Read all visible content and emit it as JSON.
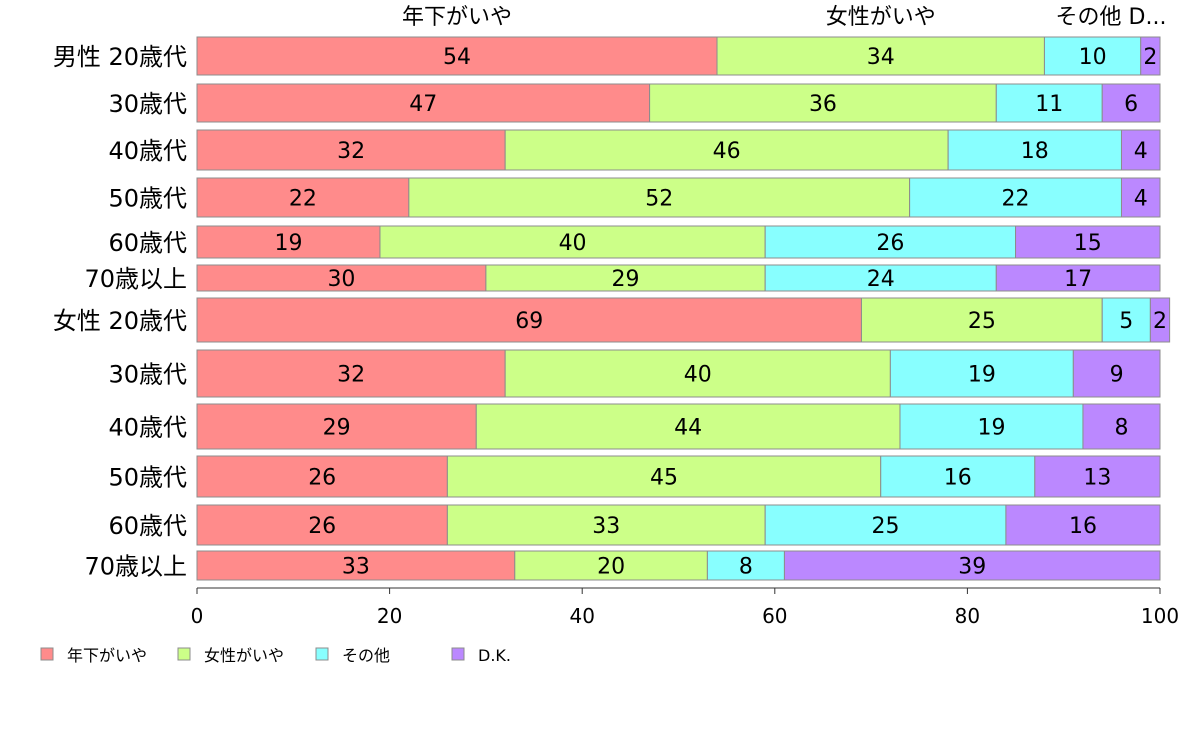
{
  "colors": {
    "年下がいや": "#FF8B8B",
    "女性がいや": "#CCFF88",
    "その他": "#88FFFF",
    "D.K.": "#BB88FF"
  },
  "chart_data": {
    "type": "bar",
    "orientation": "horizontal",
    "stacked": true,
    "xlim": [
      0,
      100
    ],
    "x_ticks": [
      "0",
      "20",
      "40",
      "60",
      "80",
      "100"
    ],
    "grid": false,
    "legend_position": "bottom-left",
    "legend": [
      "年下がいや",
      "女性がいや",
      "その他",
      "D.K."
    ],
    "top_labels": [
      "年下がいや",
      "女性がいや",
      "その他 D..."
    ],
    "categories": [
      "男性 20歳代",
      "30歳代",
      "40歳代",
      "50歳代",
      "60歳代",
      "70歳以上",
      "女性 20歳代",
      "30歳代",
      "40歳代",
      "50歳代",
      "60歳代",
      "70歳以上"
    ],
    "series": [
      {
        "name": "年下がいや",
        "values": [
          54,
          47,
          32,
          22,
          19,
          30,
          69,
          32,
          29,
          26,
          26,
          33
        ]
      },
      {
        "name": "女性がいや",
        "values": [
          34,
          36,
          46,
          52,
          40,
          29,
          25,
          40,
          44,
          45,
          33,
          20
        ]
      },
      {
        "name": "その他",
        "values": [
          10,
          11,
          18,
          22,
          26,
          24,
          5,
          19,
          19,
          16,
          25,
          8
        ]
      },
      {
        "name": "D.K.",
        "values": [
          2,
          6,
          4,
          4,
          15,
          17,
          2,
          9,
          8,
          13,
          16,
          39
        ]
      }
    ]
  }
}
